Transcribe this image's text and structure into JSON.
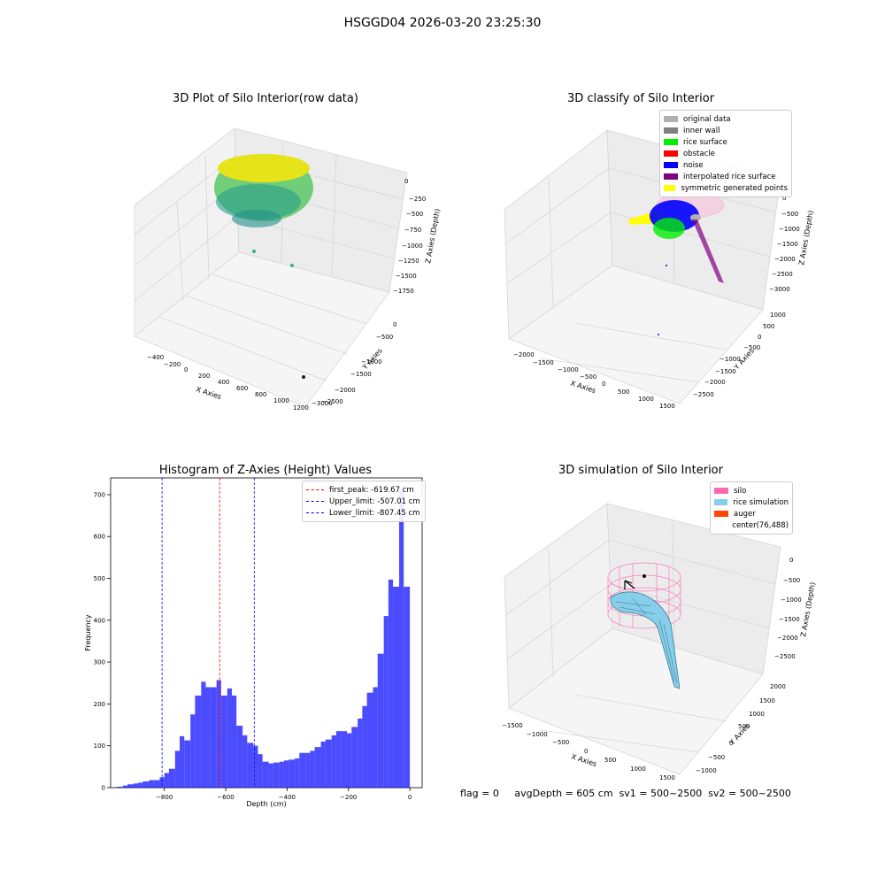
{
  "figure_title": "HSGGD04 2026-03-20 23:25:30",
  "panels": {
    "raw": {
      "title": "3D Plot of Silo Interior(row data)",
      "xlabel": "X Axies",
      "ylabel": "Y Axies",
      "zlabel": "Z Axies (Depth)",
      "x_ticks": [
        "−400",
        "−200",
        "0",
        "200",
        "400",
        "600",
        "800",
        "1000",
        "1200"
      ],
      "y_ticks": [
        "0",
        "−500",
        "−1000",
        "−1500",
        "−2000",
        "−2500",
        "−3000"
      ],
      "z_ticks": [
        "0",
        "−250",
        "−500",
        "−750",
        "−1000",
        "−1250",
        "−1500",
        "−1750"
      ]
    },
    "classify": {
      "title": "3D classify of Silo Interior",
      "xlabel": "X Axies",
      "ylabel": "Y Axies",
      "zlabel": "Z Axies (Depth)",
      "x_ticks": [
        "−2000",
        "−1500",
        "−1000",
        "−500",
        "0",
        "500",
        "1000",
        "1500"
      ],
      "y_ticks": [
        "1000",
        "500",
        "0",
        "−500",
        "−1000",
        "−1500",
        "−2000",
        "−2500"
      ],
      "z_ticks": [
        "0",
        "−500",
        "−1000",
        "−1500",
        "−2000",
        "−2500",
        "−3000"
      ],
      "legend": [
        {
          "label": "original data",
          "color": "#b0b0b0"
        },
        {
          "label": "inner wall",
          "color": "#808080"
        },
        {
          "label": "rice surface",
          "color": "#00ee00"
        },
        {
          "label": "obstacle",
          "color": "#ff0000"
        },
        {
          "label": "noise",
          "color": "#0000ff"
        },
        {
          "label": "interpolated rice surface",
          "color": "#800080"
        },
        {
          "label": "symmetric generated points",
          "color": "#ffff00"
        }
      ]
    },
    "simulation": {
      "title": "3D simulation of Silo Interior",
      "xlabel": "X Axies",
      "ylabel": "Y Axies",
      "zlabel": "Z Axies (Depth)",
      "x_ticks": [
        "−1500",
        "−1000",
        "−500",
        "0",
        "500",
        "1000",
        "1500"
      ],
      "y_ticks": [
        "2000",
        "1500",
        "1000",
        "500",
        "0",
        "−500",
        "−1000"
      ],
      "z_ticks": [
        "0",
        "−500",
        "−1000",
        "−1500",
        "−2000",
        "−2500"
      ],
      "legend": [
        {
          "label": "silo",
          "color": "#ff69b4"
        },
        {
          "label": "rice simulation",
          "color": "#87ceeb"
        },
        {
          "label": "auger",
          "color": "#ff4500"
        },
        {
          "label": "center(76,488)",
          "color": "#ffffff"
        }
      ]
    }
  },
  "status": {
    "flag": "flag = 0",
    "avg_depth": "avgDepth = 605 cm",
    "sv1": "sv1 = 500~2500",
    "sv2": "sv2 = 500~2500"
  },
  "chart_data": {
    "type": "bar",
    "title": "Histogram of Z-Axies (Height) Values",
    "xlabel": "Depth (cm)",
    "ylabel": "Frequency",
    "xlim": [
      -975,
      40
    ],
    "ylim": [
      0,
      740
    ],
    "x_ticks": [
      -800,
      -600,
      -400,
      -200,
      0
    ],
    "x_tick_labels": [
      "−800",
      "−600",
      "−400",
      "−200",
      "0"
    ],
    "y_ticks": [
      0,
      100,
      200,
      300,
      400,
      500,
      600,
      700
    ],
    "bar_color": "#0000ff",
    "bins": [
      {
        "x0": -955,
        "x1": -935,
        "count": 2
      },
      {
        "x0": -935,
        "x1": -920,
        "count": 5
      },
      {
        "x0": -920,
        "x1": -900,
        "count": 8
      },
      {
        "x0": -900,
        "x1": -885,
        "count": 10
      },
      {
        "x0": -885,
        "x1": -870,
        "count": 12
      },
      {
        "x0": -870,
        "x1": -850,
        "count": 15
      },
      {
        "x0": -850,
        "x1": -835,
        "count": 18
      },
      {
        "x0": -835,
        "x1": -815,
        "count": 18
      },
      {
        "x0": -815,
        "x1": -800,
        "count": 25
      },
      {
        "x0": -800,
        "x1": -785,
        "count": 35
      },
      {
        "x0": -785,
        "x1": -765,
        "count": 45
      },
      {
        "x0": -765,
        "x1": -750,
        "count": 88
      },
      {
        "x0": -750,
        "x1": -735,
        "count": 123
      },
      {
        "x0": -735,
        "x1": -715,
        "count": 113
      },
      {
        "x0": -715,
        "x1": -700,
        "count": 175
      },
      {
        "x0": -700,
        "x1": -680,
        "count": 220
      },
      {
        "x0": -680,
        "x1": -665,
        "count": 253
      },
      {
        "x0": -665,
        "x1": -650,
        "count": 240
      },
      {
        "x0": -650,
        "x1": -630,
        "count": 240
      },
      {
        "x0": -630,
        "x1": -615,
        "count": 257
      },
      {
        "x0": -615,
        "x1": -595,
        "count": 220
      },
      {
        "x0": -595,
        "x1": -580,
        "count": 237
      },
      {
        "x0": -580,
        "x1": -565,
        "count": 220
      },
      {
        "x0": -565,
        "x1": -545,
        "count": 148
      },
      {
        "x0": -545,
        "x1": -530,
        "count": 125
      },
      {
        "x0": -530,
        "x1": -510,
        "count": 107
      },
      {
        "x0": -510,
        "x1": -495,
        "count": 100
      },
      {
        "x0": -495,
        "x1": -480,
        "count": 80
      },
      {
        "x0": -480,
        "x1": -460,
        "count": 62
      },
      {
        "x0": -460,
        "x1": -445,
        "count": 58
      },
      {
        "x0": -445,
        "x1": -425,
        "count": 60
      },
      {
        "x0": -425,
        "x1": -410,
        "count": 62
      },
      {
        "x0": -410,
        "x1": -395,
        "count": 65
      },
      {
        "x0": -395,
        "x1": -375,
        "count": 67
      },
      {
        "x0": -375,
        "x1": -360,
        "count": 70
      },
      {
        "x0": -360,
        "x1": -340,
        "count": 83
      },
      {
        "x0": -340,
        "x1": -325,
        "count": 83
      },
      {
        "x0": -325,
        "x1": -310,
        "count": 88
      },
      {
        "x0": -310,
        "x1": -290,
        "count": 97
      },
      {
        "x0": -290,
        "x1": -275,
        "count": 110
      },
      {
        "x0": -275,
        "x1": -255,
        "count": 115
      },
      {
        "x0": -255,
        "x1": -240,
        "count": 125
      },
      {
        "x0": -240,
        "x1": -225,
        "count": 135
      },
      {
        "x0": -225,
        "x1": -205,
        "count": 135
      },
      {
        "x0": -205,
        "x1": -190,
        "count": 130
      },
      {
        "x0": -190,
        "x1": -170,
        "count": 145
      },
      {
        "x0": -170,
        "x1": -155,
        "count": 165
      },
      {
        "x0": -155,
        "x1": -140,
        "count": 195
      },
      {
        "x0": -140,
        "x1": -120,
        "count": 227
      },
      {
        "x0": -120,
        "x1": -105,
        "count": 240
      },
      {
        "x0": -105,
        "x1": -85,
        "count": 320
      },
      {
        "x0": -85,
        "x1": -70,
        "count": 410
      },
      {
        "x0": -70,
        "x1": -55,
        "count": 497
      },
      {
        "x0": -55,
        "x1": -35,
        "count": 480
      },
      {
        "x0": -35,
        "x1": -20,
        "count": 710
      },
      {
        "x0": -20,
        "x1": 0,
        "count": 480
      }
    ],
    "vlines": [
      {
        "label": "first_peak: -619.67 cm",
        "x": -619.67,
        "color": "#ff0000"
      },
      {
        "label": "Upper_limit: -507.01 cm",
        "x": -507.01,
        "color": "#0000ff"
      },
      {
        "label": "Lower_limit: -807.45 cm",
        "x": -807.45,
        "color": "#0000ff"
      }
    ],
    "legend_position": "upper right"
  }
}
